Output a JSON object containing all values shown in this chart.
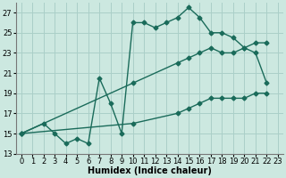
{
  "line1_x": [
    0,
    2,
    3,
    4,
    5,
    6,
    7,
    8,
    9,
    10,
    11,
    12,
    13,
    14,
    15,
    16,
    17,
    18,
    19,
    20,
    21,
    22
  ],
  "line1_y": [
    15,
    16,
    15,
    14,
    14.5,
    14,
    20.5,
    18,
    15,
    26,
    26,
    25.5,
    26,
    26.5,
    27.5,
    26.5,
    25,
    25,
    24.5,
    23.5,
    23,
    20
  ],
  "line2_x": [
    0,
    10,
    14,
    15,
    16,
    17,
    18,
    19,
    20,
    21,
    22
  ],
  "line2_y": [
    15,
    20,
    22,
    22.5,
    23,
    23.5,
    23,
    23,
    23.5,
    24,
    24
  ],
  "line3_x": [
    0,
    10,
    14,
    15,
    16,
    17,
    18,
    19,
    20,
    21,
    22
  ],
  "line3_y": [
    15,
    16,
    17,
    17.5,
    18,
    18.5,
    18.5,
    18.5,
    18.5,
    19,
    19
  ],
  "line_color": "#1a6b5a",
  "bg_color": "#cce8e0",
  "grid_color": "#aacfc8",
  "xlabel": "Humidex (Indice chaleur)",
  "xlim": [
    -0.5,
    23.5
  ],
  "ylim": [
    13,
    28
  ],
  "yticks": [
    13,
    15,
    17,
    19,
    21,
    23,
    25,
    27
  ],
  "xticks": [
    0,
    1,
    2,
    3,
    4,
    5,
    6,
    7,
    8,
    9,
    10,
    11,
    12,
    13,
    14,
    15,
    16,
    17,
    18,
    19,
    20,
    21,
    22,
    23
  ],
  "marker": "D",
  "markersize": 2.5,
  "linewidth": 1.0,
  "xlabel_fontsize": 7,
  "tick_fontsize": 6
}
